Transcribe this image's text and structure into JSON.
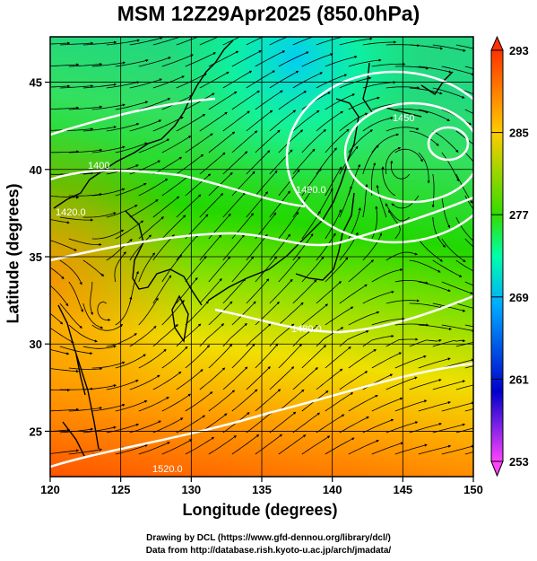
{
  "title": "MSM 12Z29Apr2025 (850.0hPa)",
  "xlabel": "Longitude (degrees)",
  "ylabel": "Latitude  (degrees)",
  "credits": [
    "Drawing by DCL (https://www.gfd-dennou.org/library/dcl/)",
    "Data from http://database.rish.kyoto-u.ac.jp/arch/jmadata/"
  ],
  "map": {
    "lon_range": [
      120,
      150
    ],
    "lat_range": [
      22.4,
      47.6
    ],
    "lon_ticks": [
      "120",
      "125",
      "130",
      "135",
      "140",
      "145",
      "150"
    ],
    "lat_ticks": [
      "25",
      "30",
      "35",
      "40",
      "45"
    ],
    "colorbar": {
      "range": [
        253,
        293
      ],
      "labels": [
        "293",
        "285",
        "277",
        "269",
        "261",
        "253"
      ],
      "colors": [
        "#ff44ff",
        "#0000cc",
        "#00aaff",
        "#00ffaa",
        "#33dd00",
        "#ffcc00",
        "#ff3300"
      ]
    },
    "contour_labels": [
      {
        "text": "1520.0"
      },
      {
        "text": "1480.0"
      },
      {
        "text": "1490.0"
      },
      {
        "text": "1400"
      },
      {
        "text": "1420.0"
      },
      {
        "text": "1450"
      }
    ]
  }
}
